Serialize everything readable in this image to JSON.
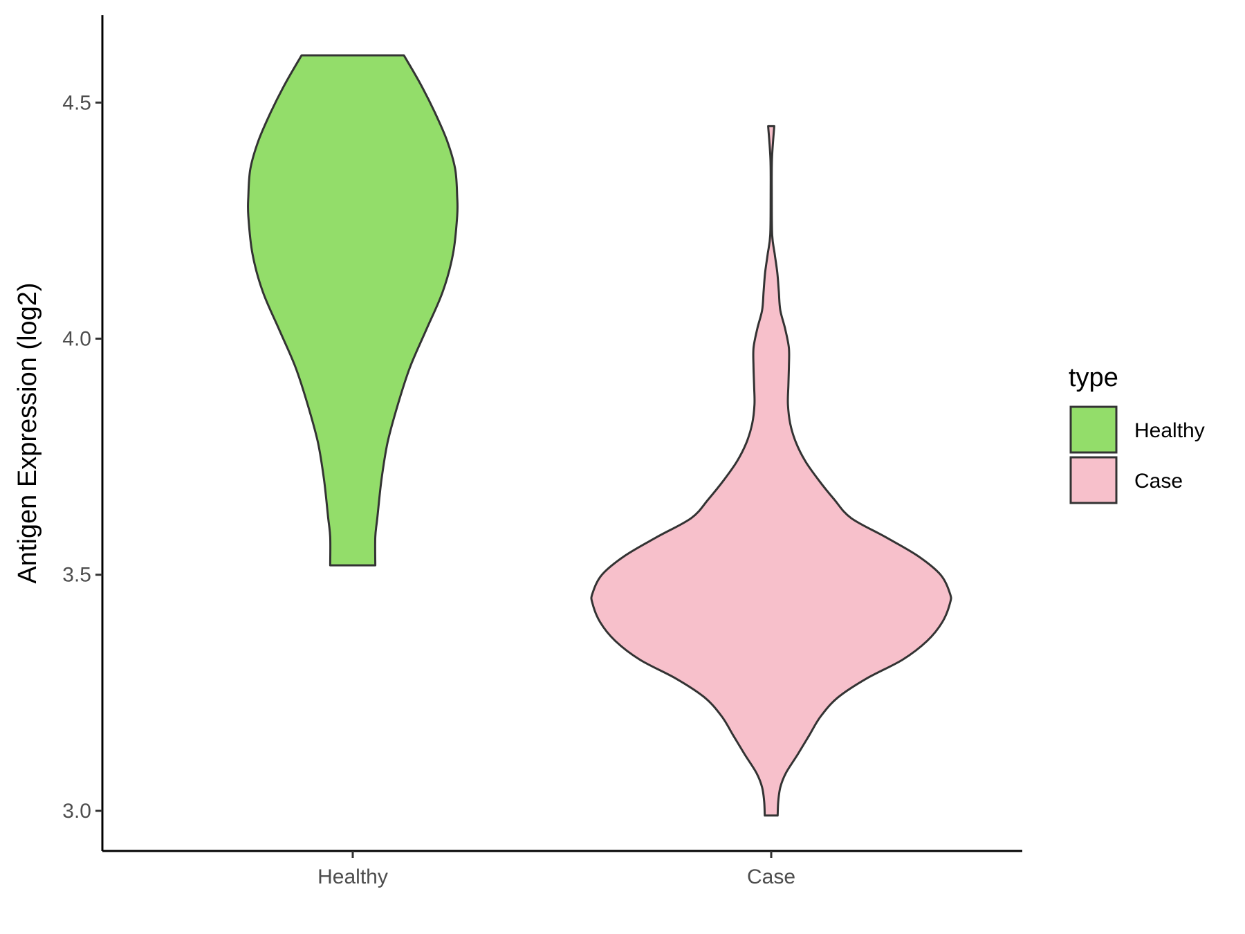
{
  "chart_data": {
    "type": "violin",
    "ylabel": "Antigen Expression (log2)",
    "xlabel": "",
    "ylim": [
      2.915,
      4.685
    ],
    "yticks": [
      3.0,
      3.5,
      4.0,
      4.5
    ],
    "ytick_labels": [
      "3.0",
      "3.5",
      "4.0",
      "4.5"
    ],
    "categories": [
      "Healthy",
      "Case"
    ],
    "legend": {
      "title": "type",
      "placement": "right",
      "items": [
        {
          "label": "Healthy",
          "color": "#93DD6A"
        },
        {
          "label": "Case",
          "color": "#F7C0CB"
        }
      ]
    },
    "series": [
      {
        "category": "Healthy",
        "color": "#93DD6A",
        "min": 3.52,
        "max": 4.6,
        "density_profile": [
          [
            3.52,
            0.11
          ],
          [
            3.58,
            0.11
          ],
          [
            3.62,
            0.12
          ],
          [
            3.7,
            0.14
          ],
          [
            3.78,
            0.17
          ],
          [
            3.86,
            0.22
          ],
          [
            3.94,
            0.28
          ],
          [
            4.02,
            0.36
          ],
          [
            4.1,
            0.44
          ],
          [
            4.18,
            0.49
          ],
          [
            4.26,
            0.51
          ],
          [
            4.3,
            0.51
          ],
          [
            4.36,
            0.5
          ],
          [
            4.42,
            0.46
          ],
          [
            4.48,
            0.4
          ],
          [
            4.54,
            0.33
          ],
          [
            4.6,
            0.25
          ]
        ]
      },
      {
        "category": "Case",
        "color": "#F7C0CB",
        "min": 2.99,
        "max": 4.45,
        "density_profile": [
          [
            2.99,
            0.034
          ],
          [
            3.02,
            0.037
          ],
          [
            3.05,
            0.048
          ],
          [
            3.08,
            0.077
          ],
          [
            3.12,
            0.14
          ],
          [
            3.16,
            0.2
          ],
          [
            3.2,
            0.26
          ],
          [
            3.24,
            0.35
          ],
          [
            3.28,
            0.5
          ],
          [
            3.32,
            0.69
          ],
          [
            3.36,
            0.82
          ],
          [
            3.4,
            0.9
          ],
          [
            3.44,
            0.94
          ],
          [
            3.46,
            0.94
          ],
          [
            3.5,
            0.89
          ],
          [
            3.54,
            0.77
          ],
          [
            3.58,
            0.6
          ],
          [
            3.62,
            0.42
          ],
          [
            3.66,
            0.33
          ],
          [
            3.7,
            0.25
          ],
          [
            3.74,
            0.18
          ],
          [
            3.78,
            0.13
          ],
          [
            3.82,
            0.1
          ],
          [
            3.86,
            0.088
          ],
          [
            3.9,
            0.09
          ],
          [
            3.94,
            0.093
          ],
          [
            3.98,
            0.093
          ],
          [
            4.02,
            0.074
          ],
          [
            4.06,
            0.048
          ],
          [
            4.1,
            0.04
          ],
          [
            4.14,
            0.032
          ],
          [
            4.18,
            0.018
          ],
          [
            4.22,
            0.005
          ],
          [
            4.3,
            0.003
          ],
          [
            4.38,
            0.004
          ],
          [
            4.45,
            0.016
          ]
        ]
      }
    ]
  }
}
